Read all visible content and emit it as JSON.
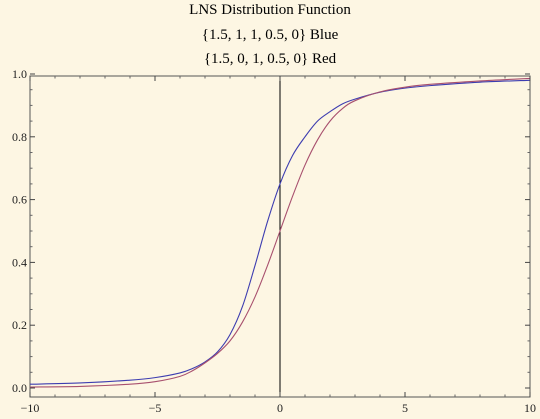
{
  "chart_data": {
    "type": "line",
    "title_lines": [
      "LNS Distribution Function",
      "{1.5, 1, 1, 0.5, 0} Blue",
      "{1.5, 0, 1, 0.5, 0} Red"
    ],
    "xlabel": "",
    "ylabel": "",
    "xlim": [
      -10,
      10
    ],
    "ylim": [
      0,
      1
    ],
    "xticks": [
      -10,
      -5,
      0,
      5,
      10
    ],
    "xtick_labels": [
      "−10",
      "−5",
      "0",
      "5",
      "10"
    ],
    "yticks": [
      0,
      0.2,
      0.4,
      0.6,
      0.8,
      1
    ],
    "ytick_labels": [
      "0.0",
      "0.2",
      "0.4",
      "0.6",
      "0.8",
      "1.0"
    ],
    "grid": false,
    "background": "#fdf6e3",
    "series": [
      {
        "color": "#3d3db0",
        "x": [
          -10,
          -8,
          -6,
          -5,
          -4,
          -3.5,
          -3,
          -2.5,
          -2,
          -1.5,
          -1,
          -0.5,
          0,
          0.5,
          1,
          1.5,
          2,
          2.5,
          3,
          4,
          5,
          6,
          8,
          10
        ],
        "y": [
          0.012,
          0.016,
          0.025,
          0.033,
          0.048,
          0.062,
          0.083,
          0.115,
          0.17,
          0.26,
          0.39,
          0.53,
          0.65,
          0.74,
          0.8,
          0.85,
          0.88,
          0.905,
          0.92,
          0.942,
          0.955,
          0.963,
          0.974,
          0.98
        ]
      },
      {
        "color": "#a8506e",
        "x": [
          -10,
          -8,
          -6,
          -5,
          -4,
          -3.5,
          -3,
          -2.5,
          -2,
          -1.5,
          -1,
          -0.5,
          0,
          0.5,
          1,
          1.5,
          2,
          2.5,
          3,
          4,
          5,
          6,
          8,
          10
        ],
        "y": [
          0.003,
          0.005,
          0.012,
          0.02,
          0.037,
          0.055,
          0.08,
          0.11,
          0.15,
          0.21,
          0.29,
          0.39,
          0.5,
          0.61,
          0.71,
          0.79,
          0.85,
          0.89,
          0.915,
          0.943,
          0.958,
          0.967,
          0.978,
          0.986
        ]
      }
    ]
  }
}
